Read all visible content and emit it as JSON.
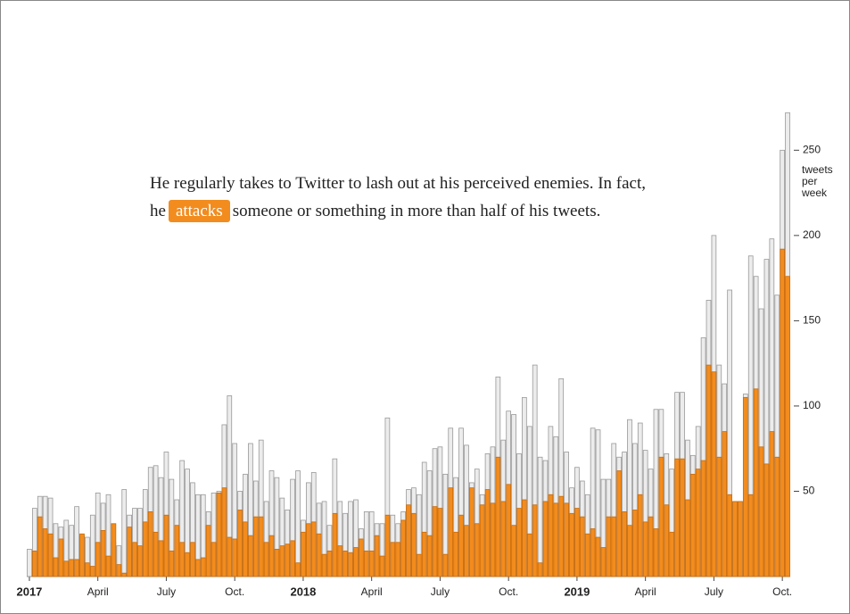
{
  "chart_data": {
    "type": "bar",
    "annotation": {
      "before": "He regularly takes to Twitter to lash out at his perceived enemies. In fact, he",
      "highlight": "attacks",
      "after": "someone or something in more than half of his tweets."
    },
    "y_label": "tweets per week",
    "ylim": [
      0,
      280
    ],
    "yticks": [
      50,
      100,
      150,
      200,
      250
    ],
    "xlim": [
      0,
      145
    ],
    "xticks": [
      {
        "value": 0,
        "label": "2017"
      },
      {
        "value": 13,
        "label": "April"
      },
      {
        "value": 26,
        "label": "July"
      },
      {
        "value": 39,
        "label": "Oct."
      },
      {
        "value": 52,
        "label": "2018"
      },
      {
        "value": 65,
        "label": "April"
      },
      {
        "value": 78,
        "label": "July"
      },
      {
        "value": 91,
        "label": "Oct."
      },
      {
        "value": 104,
        "label": "2019"
      },
      {
        "value": 117,
        "label": "April"
      },
      {
        "value": 130,
        "label": "July"
      },
      {
        "value": 143,
        "label": "Oct."
      }
    ],
    "series": [
      {
        "color": "#ececec",
        "values": [
          16,
          40,
          47,
          47,
          46,
          31,
          29,
          33,
          30,
          41,
          24,
          23,
          36,
          49,
          43,
          48,
          20,
          18,
          51,
          36,
          40,
          40,
          51,
          64,
          65,
          58,
          73,
          57,
          45,
          68,
          63,
          55,
          48,
          48,
          38,
          49,
          50,
          89,
          106,
          78,
          50,
          60,
          78,
          56,
          80,
          44,
          62,
          58,
          46,
          39,
          57,
          62,
          33,
          55,
          61,
          43,
          44,
          30,
          69,
          44,
          37,
          44,
          45,
          28,
          38,
          38,
          31,
          31,
          93,
          36,
          31,
          38,
          51,
          52,
          48,
          67,
          62,
          75,
          76,
          60,
          87,
          58,
          87,
          77,
          55,
          63,
          48,
          72,
          76,
          117,
          80,
          97,
          95,
          72,
          105,
          88,
          124,
          70,
          68,
          88,
          82,
          116,
          73,
          52,
          64,
          56,
          48,
          87,
          86,
          57,
          57,
          78,
          70,
          73,
          92,
          78,
          90,
          74,
          63,
          98,
          98,
          72,
          63,
          108,
          108,
          80,
          71,
          88,
          140,
          162,
          200,
          124,
          113,
          168,
          44,
          44,
          107,
          188,
          176,
          157,
          186,
          198,
          165,
          250,
          272
        ]
      },
      {
        "color": "#f28c1e",
        "values": [
          0,
          15,
          35,
          28,
          25,
          11,
          22,
          9,
          10,
          10,
          25,
          8,
          6,
          20,
          27,
          12,
          31,
          7,
          2,
          29,
          20,
          18,
          32,
          38,
          26,
          21,
          36,
          15,
          30,
          20,
          14,
          20,
          10,
          11,
          30,
          20,
          49,
          52,
          23,
          22,
          39,
          32,
          24,
          35,
          35,
          20,
          24,
          16,
          18,
          19,
          21,
          8,
          26,
          31,
          32,
          25,
          13,
          15,
          37,
          18,
          15,
          14,
          17,
          22,
          15,
          15,
          24,
          12,
          36,
          20,
          20,
          33,
          42,
          37,
          13,
          26,
          24,
          41,
          40,
          13,
          52,
          26,
          36,
          30,
          52,
          31,
          42,
          51,
          43,
          70,
          44,
          54,
          30,
          40,
          45,
          25,
          42,
          8,
          44,
          48,
          43,
          47,
          43,
          37,
          40,
          35,
          25,
          28,
          23,
          17,
          35,
          35,
          62,
          38,
          30,
          39,
          48,
          32,
          35,
          28,
          70,
          42,
          26,
          69,
          69,
          45,
          60,
          63,
          68,
          124,
          120,
          70,
          85,
          48,
          44,
          44,
          105,
          48,
          110,
          76,
          66,
          85,
          70,
          192,
          176
        ]
      }
    ]
  }
}
